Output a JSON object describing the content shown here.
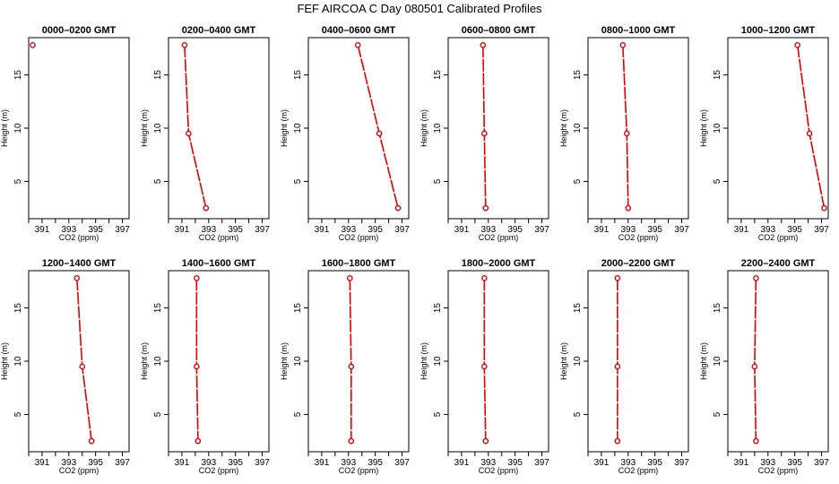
{
  "figure": {
    "title": "FEF AIRCOA C  Day 080501  Calibrated Profiles"
  },
  "colors": {
    "series": "#e00000",
    "axes": "#000000"
  },
  "chart_data": [
    {
      "type": "line",
      "title": "0000–0200 GMT",
      "xlabel": "CO2 (ppm)",
      "ylabel": "Height (m)",
      "xlim": [
        390,
        397.5
      ],
      "ylim": [
        1.5,
        18.5
      ],
      "xticks": [
        "391",
        "393",
        "395",
        "397"
      ],
      "yticks": [
        "5",
        "10",
        "15"
      ],
      "series": [
        {
          "x": [
            390.3
          ],
          "y": [
            17.8
          ]
        }
      ]
    },
    {
      "type": "line",
      "title": "0200–0400 GMT",
      "xlabel": "CO2 (ppm)",
      "ylabel": "Height (m)",
      "xlim": [
        390,
        397.5
      ],
      "ylim": [
        1.5,
        18.5
      ],
      "xticks": [
        "391",
        "393",
        "395",
        "397"
      ],
      "yticks": [
        "5",
        "10",
        "15"
      ],
      "series": [
        {
          "x": [
            391.2,
            391.5,
            392.8
          ],
          "y": [
            17.8,
            9.5,
            2.5
          ]
        }
      ]
    },
    {
      "type": "line",
      "title": "0400–0600 GMT",
      "xlabel": "CO2 (ppm)",
      "ylabel": "Height (m)",
      "xlim": [
        390,
        397.5
      ],
      "ylim": [
        1.5,
        18.5
      ],
      "xticks": [
        "391",
        "393",
        "395",
        "397"
      ],
      "yticks": [
        "5",
        "10",
        "15"
      ],
      "series": [
        {
          "x": [
            393.7,
            395.3,
            396.7
          ],
          "y": [
            17.8,
            9.5,
            2.5
          ]
        }
      ]
    },
    {
      "type": "line",
      "title": "0600–0800 GMT",
      "xlabel": "CO2 (ppm)",
      "ylabel": "Height (m)",
      "xlim": [
        390,
        397.5
      ],
      "ylim": [
        1.5,
        18.5
      ],
      "xticks": [
        "391",
        "393",
        "395",
        "397"
      ],
      "yticks": [
        "5",
        "10",
        "15"
      ],
      "series": [
        {
          "x": [
            392.6,
            392.7,
            392.8
          ],
          "y": [
            17.8,
            9.5,
            2.5
          ]
        }
      ]
    },
    {
      "type": "line",
      "title": "0800–1000 GMT",
      "xlabel": "CO2 (ppm)",
      "ylabel": "Height (m)",
      "xlim": [
        390,
        397.5
      ],
      "ylim": [
        1.5,
        18.5
      ],
      "xticks": [
        "391",
        "393",
        "395",
        "397"
      ],
      "yticks": [
        "5",
        "10",
        "15"
      ],
      "series": [
        {
          "x": [
            392.6,
            392.9,
            393.0
          ],
          "y": [
            17.8,
            9.5,
            2.5
          ]
        }
      ]
    },
    {
      "type": "line",
      "title": "1000–1200 GMT",
      "xlabel": "CO2 (ppm)",
      "ylabel": "Height (m)",
      "xlim": [
        390,
        397.5
      ],
      "ylim": [
        1.5,
        18.5
      ],
      "xticks": [
        "391",
        "393",
        "395",
        "397"
      ],
      "yticks": [
        "5",
        "10",
        "15"
      ],
      "series": [
        {
          "x": [
            395.2,
            396.1,
            397.2
          ],
          "y": [
            17.8,
            9.5,
            2.5
          ]
        }
      ]
    },
    {
      "type": "line",
      "title": "1200–1400 GMT",
      "xlabel": "CO2 (ppm)",
      "ylabel": "Height (m)",
      "xlim": [
        390,
        397.5
      ],
      "ylim": [
        1.5,
        18.5
      ],
      "xticks": [
        "391",
        "393",
        "395",
        "397"
      ],
      "yticks": [
        "5",
        "10",
        "15"
      ],
      "series": [
        {
          "x": [
            393.6,
            394.0,
            394.7
          ],
          "y": [
            17.8,
            9.5,
            2.5
          ]
        }
      ]
    },
    {
      "type": "line",
      "title": "1400–1600 GMT",
      "xlabel": "CO2 (ppm)",
      "ylabel": "Height (m)",
      "xlim": [
        390,
        397.5
      ],
      "ylim": [
        1.5,
        18.5
      ],
      "xticks": [
        "391",
        "393",
        "395",
        "397"
      ],
      "yticks": [
        "5",
        "10",
        "15"
      ],
      "series": [
        {
          "x": [
            392.1,
            392.1,
            392.2
          ],
          "y": [
            17.8,
            9.5,
            2.5
          ]
        }
      ]
    },
    {
      "type": "line",
      "title": "1600–1800 GMT",
      "xlabel": "CO2 (ppm)",
      "ylabel": "Height (m)",
      "xlim": [
        390,
        397.5
      ],
      "ylim": [
        1.5,
        18.5
      ],
      "xticks": [
        "391",
        "393",
        "395",
        "397"
      ],
      "yticks": [
        "5",
        "10",
        "15"
      ],
      "series": [
        {
          "x": [
            393.1,
            393.2,
            393.2
          ],
          "y": [
            17.8,
            9.5,
            2.5
          ]
        }
      ]
    },
    {
      "type": "line",
      "title": "1800–2000 GMT",
      "xlabel": "CO2 (ppm)",
      "ylabel": "Height (m)",
      "xlim": [
        390,
        397.5
      ],
      "ylim": [
        1.5,
        18.5
      ],
      "xticks": [
        "391",
        "393",
        "395",
        "397"
      ],
      "yticks": [
        "5",
        "10",
        "15"
      ],
      "series": [
        {
          "x": [
            392.7,
            392.7,
            392.8
          ],
          "y": [
            17.8,
            9.5,
            2.5
          ]
        }
      ]
    },
    {
      "type": "line",
      "title": "2000–2200 GMT",
      "xlabel": "CO2 (ppm)",
      "ylabel": "Height (m)",
      "xlim": [
        390,
        397.5
      ],
      "ylim": [
        1.5,
        18.5
      ],
      "xticks": [
        "391",
        "393",
        "395",
        "397"
      ],
      "yticks": [
        "5",
        "10",
        "15"
      ],
      "series": [
        {
          "x": [
            392.2,
            392.2,
            392.2
          ],
          "y": [
            17.8,
            9.5,
            2.5
          ]
        }
      ]
    },
    {
      "type": "line",
      "title": "2200–2400 GMT",
      "xlabel": "CO2 (ppm)",
      "ylabel": "Height (m)",
      "xlim": [
        390,
        397.5
      ],
      "ylim": [
        1.5,
        18.5
      ],
      "xticks": [
        "391",
        "393",
        "395",
        "397"
      ],
      "yticks": [
        "5",
        "10",
        "15"
      ],
      "series": [
        {
          "x": [
            392.1,
            392.0,
            392.1
          ],
          "y": [
            17.8,
            9.5,
            2.5
          ]
        }
      ]
    }
  ]
}
